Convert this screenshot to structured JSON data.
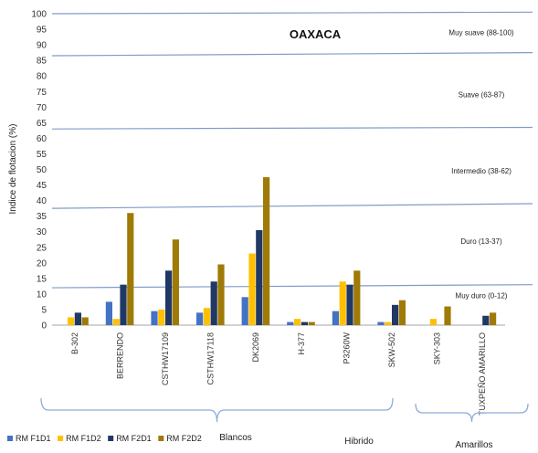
{
  "chart_data": {
    "type": "bar",
    "title": "OAXACA",
    "ylabel": "Indice de flotacion (%)",
    "ylim": [
      0,
      100
    ],
    "yticks": [
      0,
      5,
      10,
      15,
      20,
      25,
      30,
      35,
      40,
      45,
      50,
      55,
      60,
      65,
      70,
      75,
      80,
      85,
      90,
      95,
      100
    ],
    "categories": [
      "B-302",
      "BERRENDO",
      "CSTHW17109",
      "CSTHW17118",
      "DK2069",
      "H-377",
      "P3260W",
      "SKW-502",
      "SKY-303",
      "TUXPEÑO AMARILLO"
    ],
    "series": [
      {
        "name": "RM F1D1",
        "color": "#4472C4",
        "values": [
          0,
          7.5,
          4.5,
          4,
          9,
          1,
          4.5,
          1,
          0,
          0
        ]
      },
      {
        "name": "RM F1D2",
        "color": "#FFC000",
        "values": [
          2.5,
          2,
          5,
          5.5,
          23,
          2,
          14,
          1,
          2,
          0
        ]
      },
      {
        "name": "RM F2D1",
        "color": "#203864",
        "values": [
          4,
          13,
          17.5,
          14,
          30.5,
          1,
          13,
          6.5,
          0,
          3
        ]
      },
      {
        "name": "RM F2D2",
        "color": "#A07A06",
        "values": [
          2.5,
          36,
          27.5,
          19.5,
          47.5,
          1,
          17.5,
          8,
          6,
          4
        ]
      }
    ],
    "threshold_lines": [
      {
        "y_left": 12,
        "y_right": 13
      },
      {
        "y_left": 37.5,
        "y_right": 39
      },
      {
        "y_left": 63,
        "y_right": 63.5
      },
      {
        "y_left": 86.5,
        "y_right": 87.5
      },
      {
        "y_left": 100,
        "y_right": 100.5
      }
    ],
    "band_labels": [
      {
        "text": "Muy suave (88-100)",
        "y": 94
      },
      {
        "text": "Suave (63-87)",
        "y": 74
      },
      {
        "text": "Intermedio (38-62)",
        "y": 49.5
      },
      {
        "text": "Duro (13-37)",
        "y": 27
      },
      {
        "text": "Muy duro (0-12)",
        "y": 9.5
      }
    ],
    "groups": [
      {
        "label": "Blancos"
      },
      {
        "label": "Hibrido"
      },
      {
        "label": "Amarillos"
      }
    ],
    "legend_position": "bottom-left",
    "grid": false
  },
  "colors": {
    "line": "#7F9CC8",
    "axis": "#A6A6A6",
    "brace": "#8FAADC"
  }
}
